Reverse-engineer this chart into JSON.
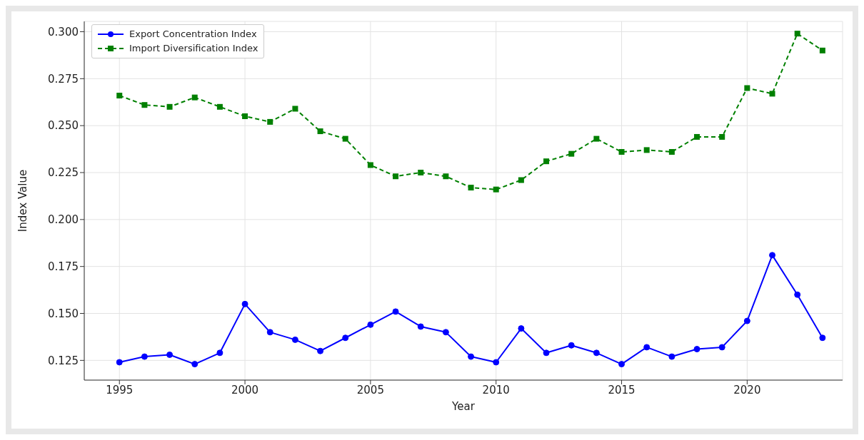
{
  "chart_data": {
    "type": "line",
    "xlabel": "Year",
    "ylabel": "Index Value",
    "x": [
      1995,
      1996,
      1997,
      1998,
      1999,
      2000,
      2001,
      2002,
      2003,
      2004,
      2005,
      2006,
      2007,
      2008,
      2009,
      2010,
      2011,
      2012,
      2013,
      2014,
      2015,
      2016,
      2017,
      2018,
      2019,
      2020,
      2021,
      2022,
      2023
    ],
    "series": [
      {
        "name": "Export Concentration Index",
        "color": "#0000ff",
        "marker": "circle",
        "line_style": "solid",
        "values": [
          0.124,
          0.127,
          0.128,
          0.123,
          0.129,
          0.155,
          0.14,
          0.136,
          0.13,
          0.137,
          0.144,
          0.151,
          0.143,
          0.14,
          0.127,
          0.124,
          0.142,
          0.129,
          0.133,
          0.129,
          0.123,
          0.132,
          0.127,
          0.131,
          0.132,
          0.146,
          0.181,
          0.16,
          0.137
        ]
      },
      {
        "name": "Import Diversification Index",
        "color": "#008000",
        "marker": "square",
        "line_style": "dashed",
        "values": [
          0.266,
          0.261,
          0.26,
          0.265,
          0.26,
          0.255,
          0.252,
          0.259,
          0.247,
          0.243,
          0.229,
          0.223,
          0.225,
          0.223,
          0.217,
          0.216,
          0.221,
          0.231,
          0.235,
          0.243,
          0.236,
          0.237,
          0.236,
          0.244,
          0.244,
          0.27,
          0.267,
          0.299,
          0.29
        ]
      }
    ],
    "xlim": [
      1993.6,
      2023.8
    ],
    "xticks": [
      1995,
      2000,
      2005,
      2010,
      2015,
      2020
    ],
    "ylim": [
      0.1145,
      0.3055
    ],
    "yticks": [
      {
        "value": 0.125,
        "label": "0.125"
      },
      {
        "value": 0.15,
        "label": "0.150"
      },
      {
        "value": 0.175,
        "label": "0.175"
      },
      {
        "value": 0.2,
        "label": "0.200"
      },
      {
        "value": 0.225,
        "label": "0.225"
      },
      {
        "value": 0.25,
        "label": "0.250"
      },
      {
        "value": 0.275,
        "label": "0.275"
      },
      {
        "value": 0.3,
        "label": "0.300"
      }
    ],
    "grid": true,
    "legend": "top left"
  }
}
